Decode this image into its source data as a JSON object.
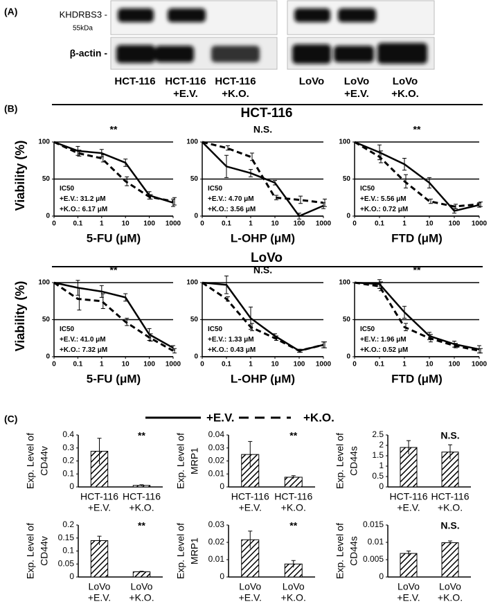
{
  "panel_labels": [
    "(A)",
    "(B)",
    "(C)"
  ],
  "blot": {
    "rows": [
      "KHDRBS3 -",
      "β-actin -"
    ],
    "mw": "55kDa",
    "lanes": [
      [
        "HCT-116"
      ],
      [
        "HCT-116",
        "+E.V."
      ],
      [
        "HCT-116",
        "+K.O."
      ],
      [
        "LoVo"
      ],
      [
        "LoVo",
        "+E.V."
      ],
      [
        "LoVo",
        "+K.O."
      ]
    ]
  },
  "groups": [
    "HCT-116",
    "LoVo"
  ],
  "legend": [
    "+E.V.",
    "+K.O."
  ],
  "chart_data": [
    {
      "type": "line",
      "xlabel": "5-FU (μM)",
      "ylabel": "Viability (%)",
      "annotation": "**",
      "ic50": [
        "IC50",
        "+E.V.: 31.2 μM",
        "+K.O.: 6.17 μM"
      ],
      "categories": [
        "0",
        "0.1",
        "1",
        "10",
        "100",
        "1000"
      ],
      "ylim": [
        0,
        100
      ],
      "yticks": [
        0,
        50,
        100
      ],
      "grid": true,
      "series": [
        {
          "color": "#000",
          "dashed": false,
          "values": [
            100,
            88,
            85,
            72,
            28,
            18
          ],
          "errors": [
            0,
            6,
            5,
            5,
            5,
            5
          ]
        },
        {
          "color": "#000",
          "dashed": true,
          "values": [
            100,
            85,
            78,
            47,
            26,
            20
          ],
          "errors": [
            0,
            4,
            5,
            6,
            3,
            5
          ]
        }
      ]
    },
    {
      "type": "line",
      "xlabel": "L-OHP (μM)",
      "annotation": "N.S.",
      "ic50": [
        "IC50",
        "+E.V.: 4.70 μM",
        "+K.O.: 3.56 μM"
      ],
      "categories": [
        "0",
        "0.1",
        "1",
        "10",
        "100",
        "1000"
      ],
      "ylim": [
        0,
        100
      ],
      "yticks": [
        0,
        50,
        100
      ],
      "grid": true,
      "series": [
        {
          "color": "#000",
          "dashed": false,
          "values": [
            100,
            67,
            58,
            45,
            0,
            14
          ],
          "errors": [
            0,
            15,
            5,
            3,
            4,
            4
          ]
        },
        {
          "color": "#000",
          "dashed": true,
          "values": [
            100,
            92,
            80,
            25,
            22,
            18
          ],
          "errors": [
            0,
            3,
            5,
            3,
            5,
            5
          ]
        }
      ]
    },
    {
      "type": "line",
      "xlabel": "FTD (μM)",
      "annotation": "**",
      "ic50": [
        "IC50",
        "+E.V.: 5.56 μM",
        "+K.O.: 0.72 μM"
      ],
      "categories": [
        "0",
        "0.1",
        "1",
        "10",
        "100",
        "1000"
      ],
      "ylim": [
        0,
        100
      ],
      "yticks": [
        0,
        50,
        100
      ],
      "grid": true,
      "series": [
        {
          "color": "#000",
          "dashed": false,
          "values": [
            100,
            86,
            70,
            45,
            7,
            15
          ],
          "errors": [
            0,
            10,
            8,
            7,
            3,
            3
          ]
        },
        {
          "color": "#000",
          "dashed": true,
          "values": [
            100,
            80,
            47,
            20,
            13,
            16
          ],
          "errors": [
            0,
            8,
            9,
            3,
            3,
            3
          ]
        }
      ]
    },
    {
      "type": "line",
      "xlabel": "5-FU (μM)",
      "ylabel": "Viability (%)",
      "annotation": "**",
      "ic50": [
        "IC50",
        "+E.V.: 41.0 μM",
        "+K.O.: 7.32 μM"
      ],
      "categories": [
        "0",
        "0.1",
        "1",
        "10",
        "100",
        "1000"
      ],
      "ylim": [
        0,
        100
      ],
      "yticks": [
        0,
        50,
        100
      ],
      "grid": true,
      "series": [
        {
          "color": "#000",
          "dashed": false,
          "values": [
            100,
            93,
            88,
            80,
            30,
            12
          ],
          "errors": [
            0,
            10,
            8,
            5,
            8,
            3
          ]
        },
        {
          "color": "#000",
          "dashed": true,
          "values": [
            100,
            78,
            75,
            47,
            26,
            8
          ],
          "errors": [
            0,
            15,
            10,
            5,
            5,
            3
          ]
        }
      ]
    },
    {
      "type": "line",
      "xlabel": "L-OHP (μM)",
      "annotation": "N.S.",
      "ic50": [
        "IC50",
        "+E.V.: 1.33 μM",
        "+K.O.: 0.43 μM"
      ],
      "categories": [
        "0",
        "0.1",
        "1",
        "10",
        "100",
        "1000"
      ],
      "ylim": [
        0,
        100
      ],
      "yticks": [
        0,
        50,
        100
      ],
      "grid": true,
      "series": [
        {
          "color": "#000",
          "dashed": false,
          "values": [
            100,
            97,
            52,
            28,
            8,
            16
          ],
          "errors": [
            0,
            12,
            15,
            3,
            2,
            4
          ]
        },
        {
          "color": "#000",
          "dashed": true,
          "values": [
            100,
            78,
            40,
            25,
            8,
            16
          ],
          "errors": [
            0,
            3,
            5,
            3,
            2,
            4
          ]
        }
      ]
    },
    {
      "type": "line",
      "xlabel": "FTD (μM)",
      "annotation": "**",
      "ic50": [
        "IC50",
        "+E.V.: 1.96 μM",
        "+K.O.: 0.52 μM"
      ],
      "categories": [
        "0",
        "0.1",
        "1",
        "10",
        "100",
        "1000"
      ],
      "ylim": [
        0,
        100
      ],
      "yticks": [
        0,
        50,
        100
      ],
      "grid": true,
      "series": [
        {
          "color": "#000",
          "dashed": false,
          "values": [
            100,
            98,
            60,
            28,
            17,
            10
          ],
          "errors": [
            0,
            6,
            8,
            5,
            4,
            5
          ]
        },
        {
          "color": "#000",
          "dashed": true,
          "values": [
            100,
            95,
            40,
            25,
            15,
            8
          ],
          "errors": [
            0,
            6,
            5,
            5,
            3,
            3
          ]
        }
      ]
    },
    {
      "type": "bar",
      "ylabel": [
        "Exp. Level of",
        "CD44v"
      ],
      "annotation": "**",
      "categories": [
        [
          "HCT-116",
          "+E.V."
        ],
        [
          "HCT-116",
          "+K.O."
        ]
      ],
      "ylim": [
        0,
        0.4
      ],
      "yticks": [
        0,
        0.1,
        0.2,
        0.3,
        0.4
      ],
      "values": [
        0.275,
        0.012
      ],
      "errors": [
        0.1,
        0.005
      ]
    },
    {
      "type": "bar",
      "ylabel": [
        "Exp. Level of",
        "MRP1"
      ],
      "annotation": "**",
      "categories": [
        [
          "HCT-116",
          "+E.V."
        ],
        [
          "HCT-116",
          "+K.O."
        ]
      ],
      "ylim": [
        0,
        0.04
      ],
      "yticks": [
        0,
        0.01,
        0.02,
        0.03,
        0.04
      ],
      "values": [
        0.025,
        0.0075
      ],
      "errors": [
        0.01,
        0.0012
      ]
    },
    {
      "type": "bar",
      "ylabel": [
        "Exp. Level of",
        "CD44s"
      ],
      "annotation": "N.S.",
      "categories": [
        [
          "HCT-116",
          "+E.V."
        ],
        [
          "HCT-116",
          "+K.O."
        ]
      ],
      "ylim": [
        0,
        2.5
      ],
      "yticks": [
        0,
        0.5,
        1,
        1.5,
        2,
        2.5
      ],
      "values": [
        1.9,
        1.68
      ],
      "errors": [
        0.33,
        0.35
      ]
    },
    {
      "type": "bar",
      "ylabel": [
        "Exp. Level of",
        "CD44v"
      ],
      "annotation": "**",
      "categories": [
        [
          "LoVo",
          "+E.V."
        ],
        [
          "LoVo",
          "+K.O."
        ]
      ],
      "ylim": [
        0,
        0.2
      ],
      "yticks": [
        0,
        0.05,
        0.1,
        0.15,
        0.2
      ],
      "values": [
        0.14,
        0.02
      ],
      "errors": [
        0.017,
        0.002
      ]
    },
    {
      "type": "bar",
      "ylabel": [
        "Exp. Level of",
        "MRP1"
      ],
      "annotation": "**",
      "categories": [
        [
          "LoVo",
          "+E.V."
        ],
        [
          "LoVo",
          "+K.O."
        ]
      ],
      "ylim": [
        0,
        0.03
      ],
      "yticks": [
        0,
        0.01,
        0.02,
        0.03
      ],
      "values": [
        0.0215,
        0.0075
      ],
      "errors": [
        0.005,
        0.002
      ]
    },
    {
      "type": "bar",
      "ylabel": [
        "Exp. Level of",
        "CD44s"
      ],
      "annotation": "N.S.",
      "categories": [
        [
          "LoVo",
          "+E.V."
        ],
        [
          "LoVo",
          "+K.O."
        ]
      ],
      "ylim": [
        0,
        0.015
      ],
      "yticks": [
        0,
        0.005,
        0.01,
        0.015
      ],
      "values": [
        0.0068,
        0.0099
      ],
      "errors": [
        0.0007,
        0.0005
      ]
    }
  ]
}
